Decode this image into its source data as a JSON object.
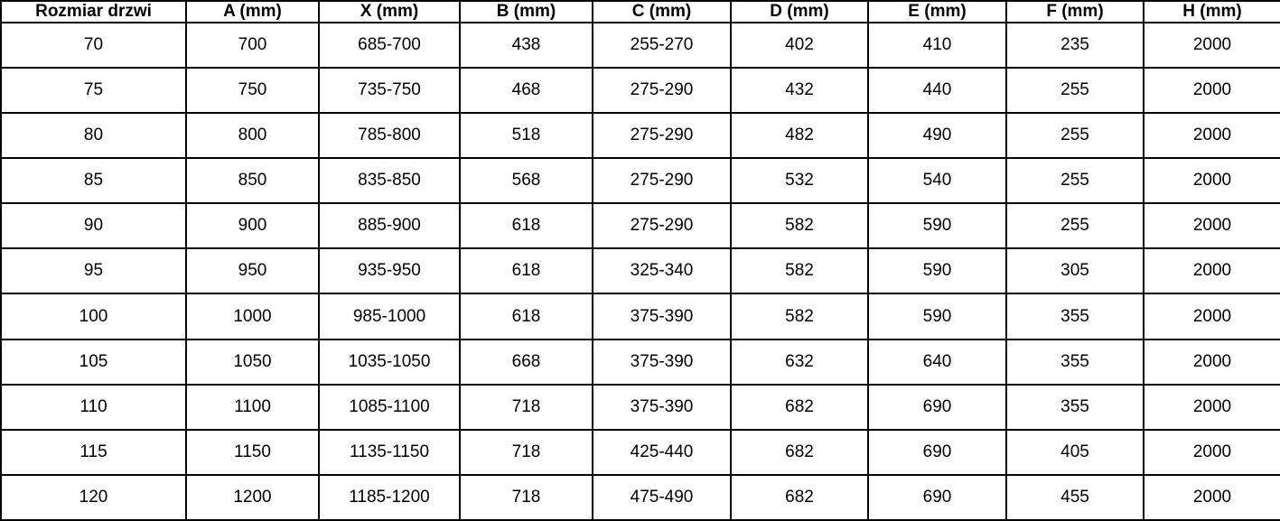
{
  "colors": {
    "border": "#000000",
    "background": "#ffffff",
    "text": "#000000"
  },
  "table": {
    "columns": [
      "Rozmiar drzwi",
      "A (mm)",
      "X (mm)",
      "B (mm)",
      "C (mm)",
      "D (mm)",
      "E (mm)",
      "F (mm)",
      "H (mm)"
    ],
    "rows": [
      [
        "70",
        "700",
        "685-700",
        "438",
        "255-270",
        "402",
        "410",
        "235",
        "2000"
      ],
      [
        "75",
        "750",
        "735-750",
        "468",
        "275-290",
        "432",
        "440",
        "255",
        "2000"
      ],
      [
        "80",
        "800",
        "785-800",
        "518",
        "275-290",
        "482",
        "490",
        "255",
        "2000"
      ],
      [
        "85",
        "850",
        "835-850",
        "568",
        "275-290",
        "532",
        "540",
        "255",
        "2000"
      ],
      [
        "90",
        "900",
        "885-900",
        "618",
        "275-290",
        "582",
        "590",
        "255",
        "2000"
      ],
      [
        "95",
        "950",
        "935-950",
        "618",
        "325-340",
        "582",
        "590",
        "305",
        "2000"
      ],
      [
        "100",
        "1000",
        "985-1000",
        "618",
        "375-390",
        "582",
        "590",
        "355",
        "2000"
      ],
      [
        "105",
        "1050",
        "1035-1050",
        "668",
        "375-390",
        "632",
        "640",
        "355",
        "2000"
      ],
      [
        "110",
        "1100",
        "1085-1100",
        "718",
        "375-390",
        "682",
        "690",
        "355",
        "2000"
      ],
      [
        "115",
        "1150",
        "1135-1150",
        "718",
        "425-440",
        "682",
        "690",
        "405",
        "2000"
      ],
      [
        "120",
        "1200",
        "1185-1200",
        "718",
        "475-490",
        "682",
        "690",
        "455",
        "2000"
      ]
    ]
  }
}
